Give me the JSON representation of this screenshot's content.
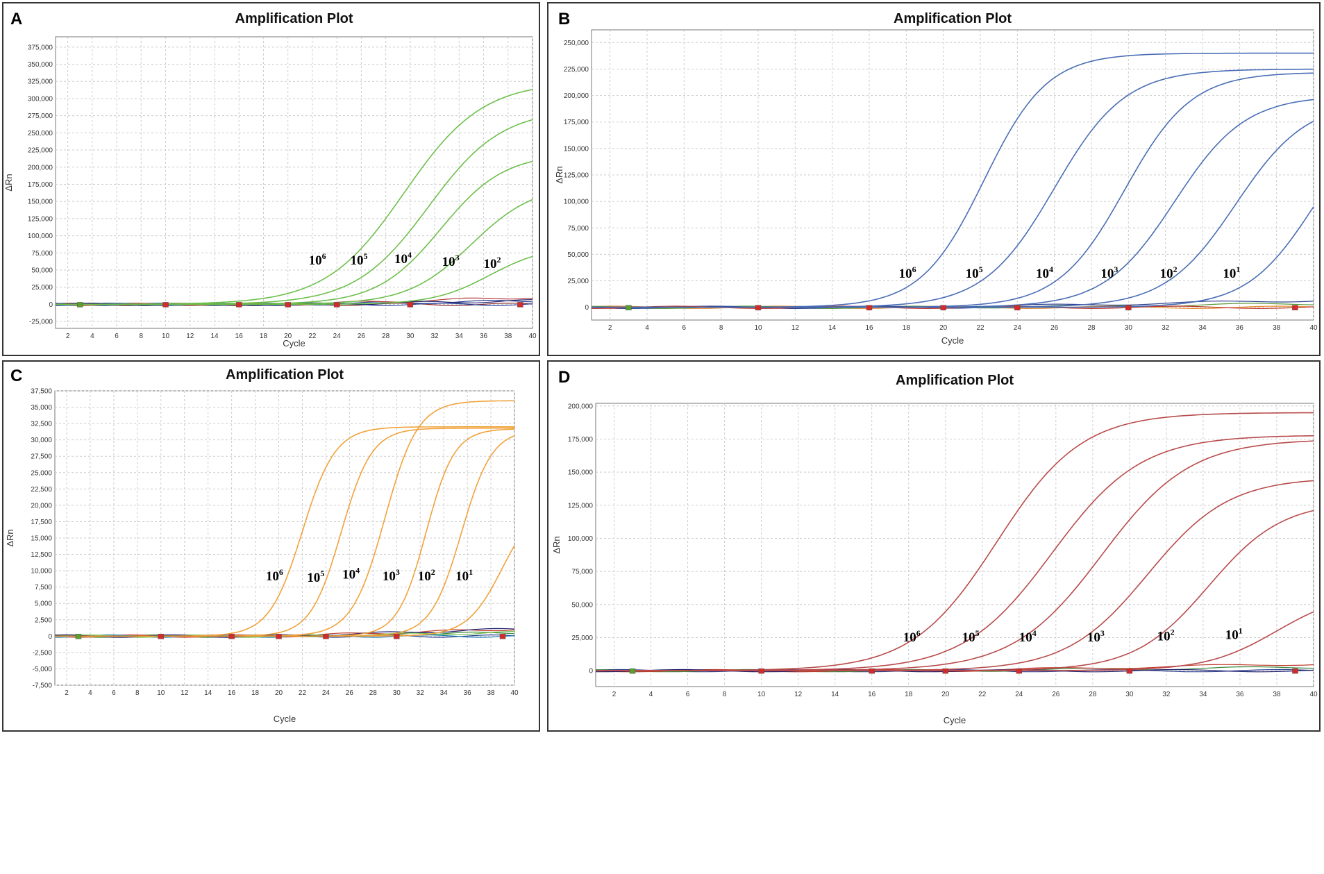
{
  "colors": {
    "green": "#6ebf4b",
    "blue": "#4a6db5",
    "orange": "#f0a23a",
    "red": "#b84a4a"
  },
  "chart_data": [
    {
      "panel": "A",
      "type": "line",
      "title": "Amplification Plot",
      "xlabel": "Cycle",
      "ylabel": "ΔRn",
      "xlim": [
        1,
        40
      ],
      "ylim": [
        -35000,
        390000
      ],
      "xticks": [
        2,
        4,
        6,
        8,
        10,
        12,
        14,
        16,
        18,
        20,
        22,
        24,
        26,
        28,
        30,
        32,
        34,
        36,
        38,
        40
      ],
      "yticks": [
        -25000,
        0,
        25000,
        50000,
        75000,
        100000,
        125000,
        150000,
        175000,
        200000,
        225000,
        250000,
        275000,
        300000,
        325000,
        350000,
        375000
      ],
      "ytick_labels": [
        "-25,000",
        "0",
        "25,000",
        "50,000",
        "75,000",
        "100,000",
        "125,000",
        "150,000",
        "175,000",
        "200,000",
        "225,000",
        "250,000",
        "275,000",
        "300,000",
        "325,000",
        "350,000",
        "375,000"
      ],
      "series_color": "green",
      "series": [
        {
          "name": "10^6",
          "plateau": 325000,
          "midpoint": 29.5,
          "slope": 3.2
        },
        {
          "name": "10^5",
          "plateau": 285000,
          "midpoint": 31.5,
          "slope": 3.0
        },
        {
          "name": "10^4",
          "plateau": 220000,
          "midpoint": 32.5,
          "slope": 2.6
        },
        {
          "name": "10^3",
          "plateau": 175000,
          "midpoint": 35.0,
          "slope": 2.6
        },
        {
          "name": "10^2",
          "plateau": 85000,
          "midpoint": 36.5,
          "slope": 2.3
        }
      ],
      "labels": [
        {
          "base": "10",
          "exp": "6",
          "x": 21.7,
          "y": 58000
        },
        {
          "base": "10",
          "exp": "5",
          "x": 25.1,
          "y": 58000
        },
        {
          "base": "10",
          "exp": "4",
          "x": 28.7,
          "y": 60000
        },
        {
          "base": "10",
          "exp": "3",
          "x": 32.6,
          "y": 56000
        },
        {
          "base": "10",
          "exp": "2",
          "x": 36.0,
          "y": 53000
        }
      ],
      "baseline_colors": [
        "#8b2a2a",
        "#2b3f8f",
        "#b53b3b",
        "#224099",
        "#1f1f6e"
      ]
    },
    {
      "panel": "B",
      "type": "line",
      "title": "Amplification Plot",
      "xlabel": "Cycle",
      "ylabel": "ΔRn",
      "xlim": [
        1,
        40
      ],
      "ylim": [
        -12000,
        262000
      ],
      "xticks": [
        2,
        4,
        6,
        8,
        10,
        12,
        14,
        16,
        18,
        20,
        22,
        24,
        26,
        28,
        30,
        32,
        34,
        36,
        38,
        40
      ],
      "yticks": [
        0,
        25000,
        50000,
        75000,
        100000,
        125000,
        150000,
        175000,
        200000,
        225000,
        250000
      ],
      "ytick_labels": [
        "0",
        "25,000",
        "50,000",
        "75,000",
        "100,000",
        "125,000",
        "150,000",
        "175,000",
        "200,000",
        "225,000",
        "250,000"
      ],
      "series_color": "blue",
      "series": [
        {
          "name": "10^6",
          "plateau": 240000,
          "midpoint": 22.2,
          "slope": 1.7
        },
        {
          "name": "10^5",
          "plateau": 225000,
          "midpoint": 26.0,
          "slope": 1.9
        },
        {
          "name": "10^4",
          "plateau": 222000,
          "midpoint": 29.8,
          "slope": 1.8
        },
        {
          "name": "10^3",
          "plateau": 200000,
          "midpoint": 32.5,
          "slope": 1.9
        },
        {
          "name": "10^2",
          "plateau": 195000,
          "midpoint": 35.8,
          "slope": 1.9
        },
        {
          "name": "10^1",
          "plateau": 190000,
          "midpoint": 40.0,
          "slope": 1.8
        }
      ],
      "labels": [
        {
          "base": "10",
          "exp": "6",
          "x": 17.6,
          "y": 28000
        },
        {
          "base": "10",
          "exp": "5",
          "x": 21.2,
          "y": 28000
        },
        {
          "base": "10",
          "exp": "4",
          "x": 25.0,
          "y": 28000
        },
        {
          "base": "10",
          "exp": "3",
          "x": 28.5,
          "y": 28000
        },
        {
          "base": "10",
          "exp": "2",
          "x": 31.7,
          "y": 28000
        },
        {
          "base": "10",
          "exp": "1",
          "x": 35.1,
          "y": 28000
        }
      ],
      "baseline_colors": [
        "#e58a2e",
        "#5a9a3c",
        "#2b3f8f",
        "#c0392b"
      ]
    },
    {
      "panel": "C",
      "type": "line",
      "title": "Amplification Plot",
      "xlabel": "Cycle",
      "ylabel": "ΔRn",
      "xlim": [
        1,
        40
      ],
      "ylim": [
        -7500,
        37500
      ],
      "xticks": [
        2,
        4,
        6,
        8,
        10,
        12,
        14,
        16,
        18,
        20,
        22,
        24,
        26,
        28,
        30,
        32,
        34,
        36,
        38,
        40
      ],
      "xtick_labels": [
        "2",
        "4",
        "6",
        "8",
        "10",
        "12",
        "14",
        "16",
        "18",
        "20",
        "22",
        "24",
        "26",
        "28",
        "30",
        "32",
        "34",
        "36",
        "38",
        "40"
      ],
      "yticks": [
        -7500,
        -5000,
        -2500,
        0,
        2500,
        5000,
        7500,
        10000,
        12500,
        15000,
        17500,
        20000,
        22500,
        25000,
        27500,
        30000,
        32500,
        35000,
        37500
      ],
      "ytick_labels": [
        "-7,500",
        "-5,000",
        "-2,500",
        "0",
        "2,500",
        "5,000",
        "7,500",
        "10,000",
        "12,500",
        "15,000",
        "17,500",
        "20,000",
        "22,500",
        "25,000",
        "27,500",
        "30,000",
        "32,500",
        "35,000",
        "37,500"
      ],
      "series_color": "orange",
      "series": [
        {
          "name": "10^6",
          "plateau": 32000,
          "midpoint": 22.0,
          "slope": 1.4
        },
        {
          "name": "10^5",
          "plateau": 31800,
          "midpoint": 25.3,
          "slope": 1.3
        },
        {
          "name": "10^4",
          "plateau": 36000,
          "midpoint": 29.0,
          "slope": 1.4
        },
        {
          "name": "10^3",
          "plateau": 31700,
          "midpoint": 32.5,
          "slope": 1.2
        },
        {
          "name": "10^2",
          "plateau": 31600,
          "midpoint": 35.5,
          "slope": 1.3
        },
        {
          "name": "10^1",
          "plateau": 21000,
          "midpoint": 39.0,
          "slope": 1.5
        }
      ],
      "labels": [
        {
          "base": "10",
          "exp": "6",
          "x": 18.9,
          "y": 8500
        },
        {
          "base": "10",
          "exp": "5",
          "x": 22.4,
          "y": 8300
        },
        {
          "base": "10",
          "exp": "4",
          "x": 25.4,
          "y": 8800
        },
        {
          "base": "10",
          "exp": "3",
          "x": 28.8,
          "y": 8500
        },
        {
          "base": "10",
          "exp": "2",
          "x": 31.8,
          "y": 8500
        },
        {
          "base": "10",
          "exp": "1",
          "x": 35.0,
          "y": 8500
        }
      ],
      "baseline_colors": [
        "#2b3f8f",
        "#3c8a3c",
        "#c0392b",
        "#1f7ab5",
        "#6ebf4b",
        "#1f1f6e"
      ]
    },
    {
      "panel": "D",
      "type": "line",
      "title": "Amplification Plot",
      "xlabel": "Cycle",
      "ylabel": "ΔRn",
      "xlim": [
        1,
        40
      ],
      "ylim": [
        -12000,
        202000
      ],
      "xticks": [
        2,
        4,
        6,
        8,
        10,
        12,
        14,
        16,
        18,
        20,
        22,
        24,
        26,
        28,
        30,
        32,
        34,
        36,
        38,
        40
      ],
      "yticks": [
        0,
        25000,
        50000,
        75000,
        100000,
        125000,
        150000,
        175000,
        200000
      ],
      "ytick_labels": [
        "0",
        "25,000",
        "50,000",
        "75,000",
        "100,000",
        "125,000",
        "150,000",
        "175,000",
        "200,000"
      ],
      "series_color": "red",
      "series": [
        {
          "name": "10^6",
          "plateau": 195000,
          "midpoint": 22.8,
          "slope": 2.3
        },
        {
          "name": "10^5",
          "plateau": 178000,
          "midpoint": 25.8,
          "slope": 2.4
        },
        {
          "name": "10^4",
          "plateau": 175000,
          "midpoint": 28.5,
          "slope": 2.4
        },
        {
          "name": "10^3",
          "plateau": 146000,
          "midpoint": 31.0,
          "slope": 2.2
        },
        {
          "name": "10^2",
          "plateau": 128000,
          "midpoint": 34.3,
          "slope": 2.0
        },
        {
          "name": "10^1",
          "plateau": 60000,
          "midpoint": 38.0,
          "slope": 1.9
        }
      ],
      "labels": [
        {
          "base": "10",
          "exp": "6",
          "x": 17.7,
          "y": 22000
        },
        {
          "base": "10",
          "exp": "5",
          "x": 20.9,
          "y": 22000
        },
        {
          "base": "10",
          "exp": "4",
          "x": 24.0,
          "y": 22000
        },
        {
          "base": "10",
          "exp": "3",
          "x": 27.7,
          "y": 22000
        },
        {
          "base": "10",
          "exp": "2",
          "x": 31.5,
          "y": 23000
        },
        {
          "base": "10",
          "exp": "1",
          "x": 35.2,
          "y": 24000
        }
      ],
      "baseline_colors": [
        "#2b3f8f",
        "#3c8a3c",
        "#c0392b",
        "#1f1f6e"
      ]
    }
  ]
}
